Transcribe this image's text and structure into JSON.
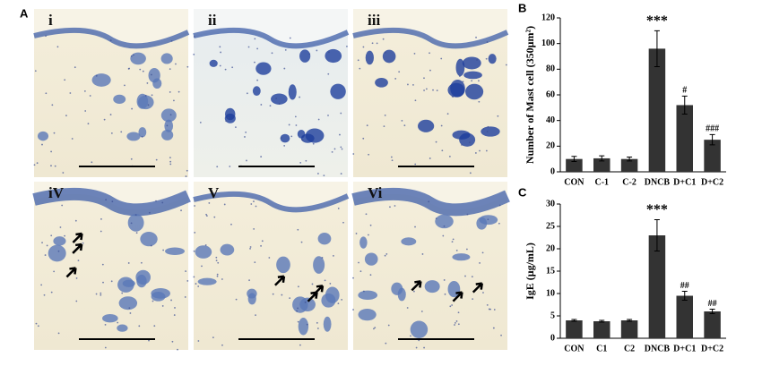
{
  "panel_a": {
    "label": "A",
    "image_labels": [
      "i",
      "ii",
      "iii",
      "iV",
      "V",
      "Vi"
    ]
  },
  "chart_data": [
    {
      "type": "bar",
      "panel_label": "B",
      "y_label": "Number of Mast cell (350μm²)",
      "categories": [
        "CON",
        "C-1",
        "C-2",
        "DNCB",
        "D+C1",
        "D+C2"
      ],
      "values": [
        10,
        10.5,
        10,
        96,
        52,
        25
      ],
      "errors": [
        2,
        2,
        1.5,
        14,
        7,
        4
      ],
      "annotations": [
        null,
        null,
        null,
        "***",
        "#",
        "###"
      ],
      "color": "#333333",
      "ylim": [
        0,
        120
      ],
      "yticks": [
        0,
        20,
        40,
        60,
        80,
        100,
        120
      ]
    },
    {
      "type": "bar",
      "panel_label": "C",
      "y_label": "IgE (μg/mL)",
      "categories": [
        "CON",
        "C1",
        "C2",
        "DNCB",
        "D+C1",
        "D+C2"
      ],
      "values": [
        4,
        3.8,
        4,
        23,
        9.5,
        6
      ],
      "errors": [
        0.2,
        0.2,
        0.2,
        3.5,
        1,
        0.5
      ],
      "annotations": [
        null,
        null,
        null,
        "***",
        "##",
        "##"
      ],
      "color": "#333333",
      "ylim": [
        0,
        30
      ],
      "yticks": [
        0,
        5,
        10,
        15,
        20,
        25,
        30
      ]
    }
  ]
}
